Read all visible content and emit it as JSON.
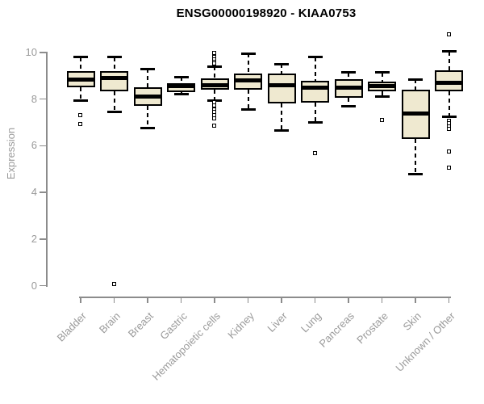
{
  "title": "ENSG00000198920 - KIAA0753",
  "colors": {
    "box_fill": "#efe9d0",
    "box_border": "#000000",
    "axis_line": "#8c8c8c",
    "axis_text": "#9a9a9a",
    "title_text": "#000000",
    "background": "#ffffff"
  },
  "chart_data": {
    "type": "boxplot",
    "title": "ENSG00000198920 - KIAA0753",
    "ylabel": "Expression",
    "xlabel": "",
    "ylim": [
      0,
      10
    ],
    "yticks": [
      0,
      2,
      4,
      6,
      8,
      10
    ],
    "grid": false,
    "categories": [
      "Bladder",
      "Brain",
      "Breast",
      "Gastric",
      "Hematopoietic cells",
      "Kidney",
      "Liver",
      "Lung",
      "Pancreas",
      "Prostate",
      "Skin",
      "Unknown / Other"
    ],
    "series": [
      {
        "label": "Bladder",
        "whisker_low": 7.95,
        "q1": 8.5,
        "median": 8.85,
        "q3": 9.2,
        "whisker_high": 9.8,
        "outliers": [
          7.3,
          6.9
        ]
      },
      {
        "label": "Brain",
        "whisker_low": 7.45,
        "q1": 8.35,
        "median": 8.9,
        "q3": 9.2,
        "whisker_high": 9.8,
        "outliers": [
          0.05
        ]
      },
      {
        "label": "Breast",
        "whisker_low": 6.75,
        "q1": 7.7,
        "median": 8.1,
        "q3": 8.5,
        "whisker_high": 9.3,
        "outliers": []
      },
      {
        "label": "Gastric",
        "whisker_low": 8.2,
        "q1": 8.3,
        "median": 8.55,
        "q3": 8.7,
        "whisker_high": 8.95,
        "outliers": []
      },
      {
        "label": "Hematopoietic cells",
        "whisker_low": 7.95,
        "q1": 8.4,
        "median": 8.6,
        "q3": 8.9,
        "whisker_high": 9.4,
        "outliers": [
          9.95,
          9.8,
          9.7,
          9.6,
          9.5,
          7.85,
          7.7,
          7.55,
          7.45,
          7.3,
          7.15,
          6.85
        ]
      },
      {
        "label": "Kidney",
        "whisker_low": 7.55,
        "q1": 8.4,
        "median": 8.8,
        "q3": 9.1,
        "whisker_high": 9.95,
        "outliers": []
      },
      {
        "label": "Liver",
        "whisker_low": 6.65,
        "q1": 7.8,
        "median": 8.6,
        "q3": 9.1,
        "whisker_high": 9.5,
        "outliers": []
      },
      {
        "label": "Lung",
        "whisker_low": 7.0,
        "q1": 7.85,
        "median": 8.5,
        "q3": 8.8,
        "whisker_high": 9.8,
        "outliers": [
          5.65
        ]
      },
      {
        "label": "Pancreas",
        "whisker_low": 7.7,
        "q1": 8.05,
        "median": 8.5,
        "q3": 8.85,
        "whisker_high": 9.15,
        "outliers": []
      },
      {
        "label": "Prostate",
        "whisker_low": 8.1,
        "q1": 8.35,
        "median": 8.55,
        "q3": 8.75,
        "whisker_high": 9.15,
        "outliers": [
          7.1
        ]
      },
      {
        "label": "Skin",
        "whisker_low": 4.8,
        "q1": 6.3,
        "median": 7.4,
        "q3": 8.4,
        "whisker_high": 8.85,
        "outliers": []
      },
      {
        "label": "Unknown / Other",
        "whisker_low": 7.25,
        "q1": 8.35,
        "median": 8.7,
        "q3": 9.25,
        "whisker_high": 10.05,
        "outliers": [
          10.75,
          7.05,
          6.95,
          6.8,
          6.7,
          5.75,
          5.05
        ]
      }
    ]
  }
}
